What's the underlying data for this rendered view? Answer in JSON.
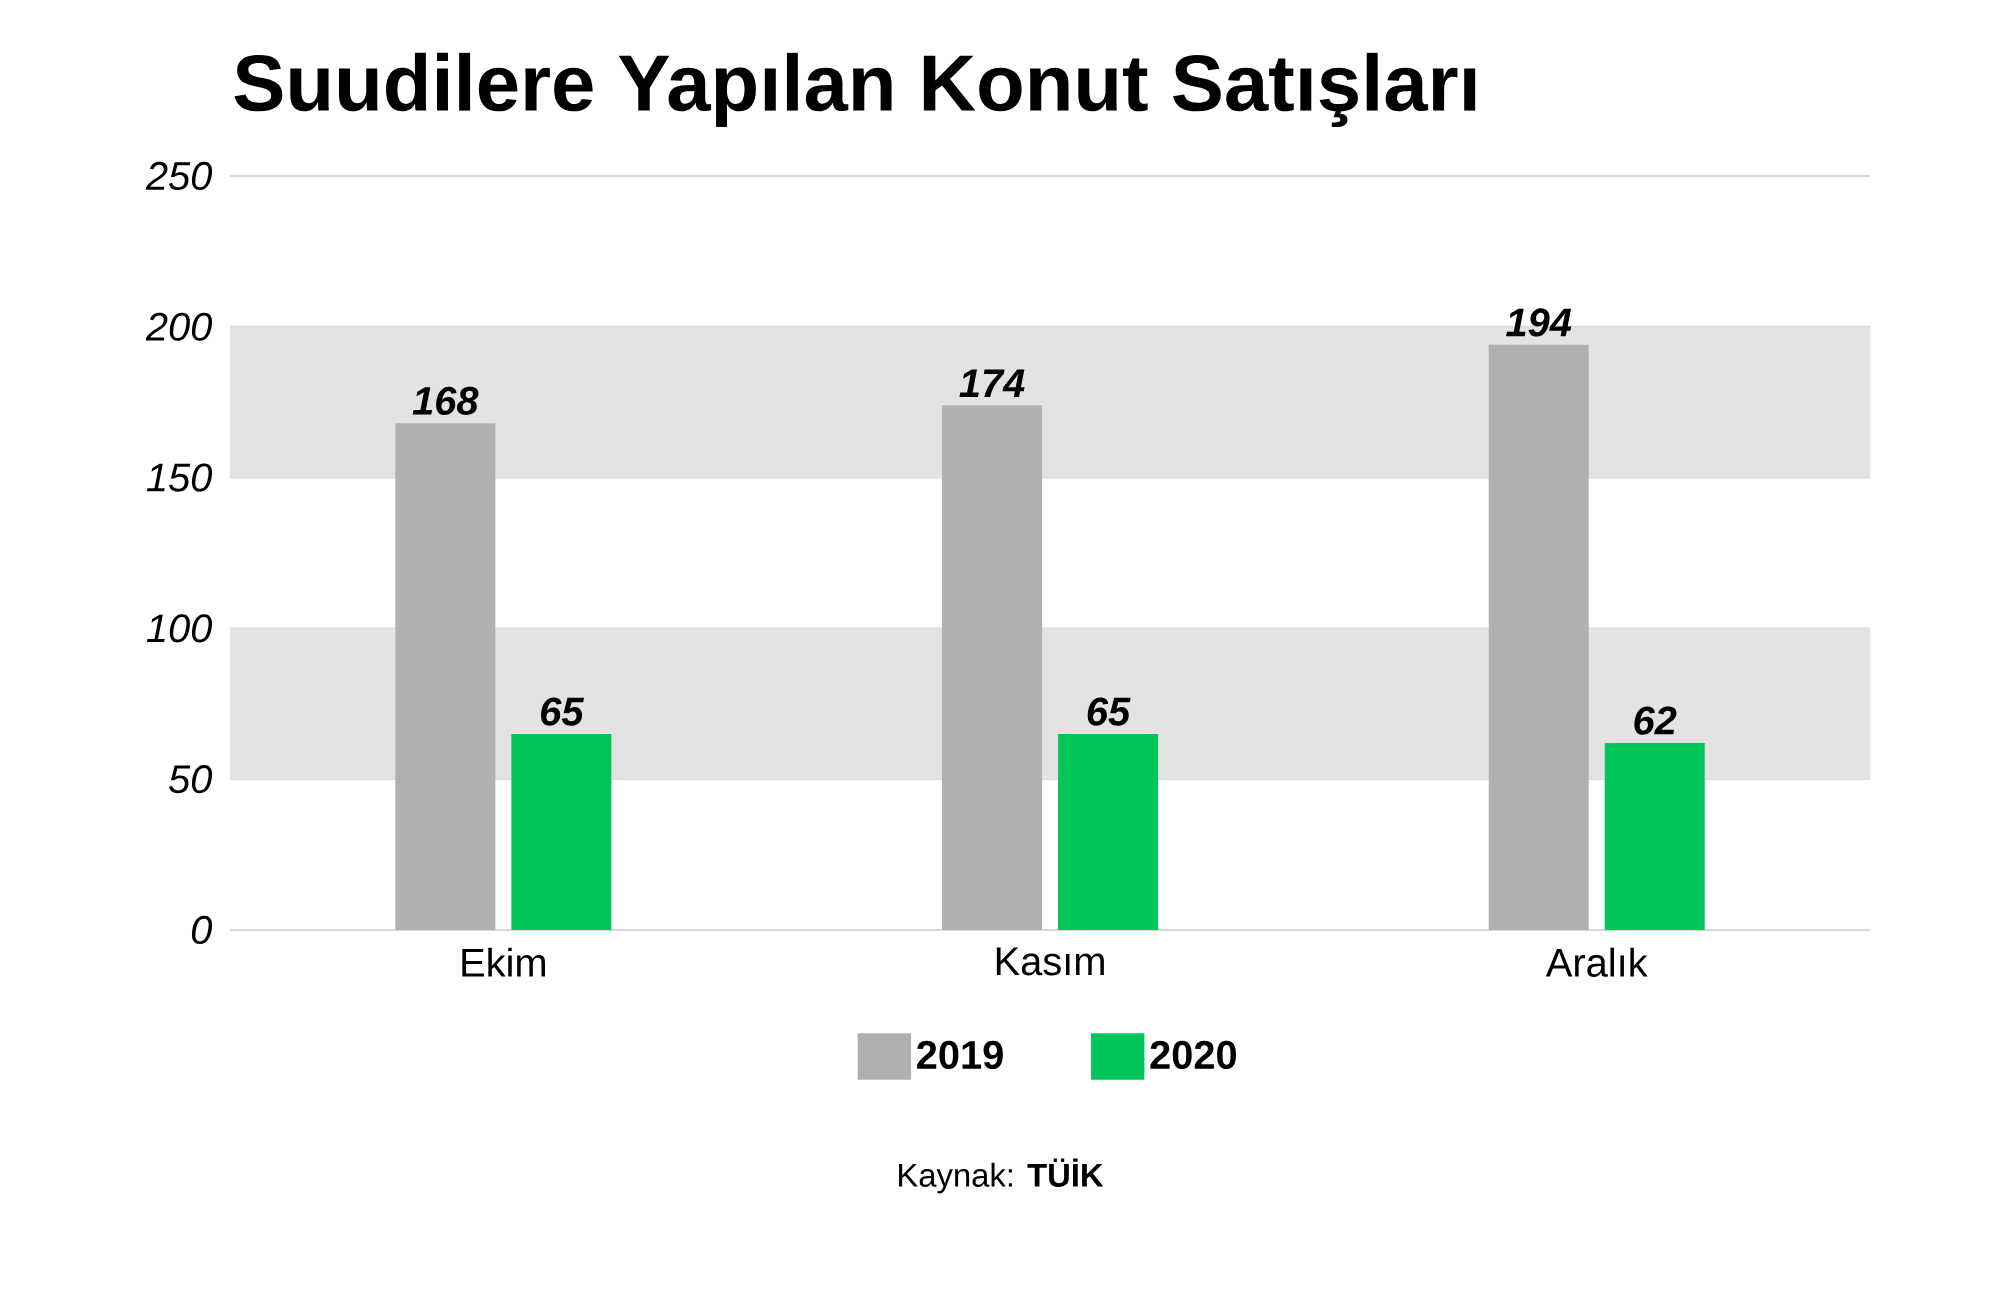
{
  "chart_data": {
    "type": "bar",
    "title": "Suudilere Yapılan Konut Satışları",
    "categories": [
      "Ekim",
      "Kasım",
      "Aralık"
    ],
    "series": [
      {
        "name": "2019",
        "color": "#b0b0b0",
        "values": [
          168,
          174,
          194
        ]
      },
      {
        "name": "2020",
        "color": "#00c65a",
        "values": [
          65,
          65,
          62
        ]
      }
    ],
    "ylim": [
      0,
      250
    ],
    "yticks": [
      0,
      50,
      100,
      150,
      200,
      250
    ],
    "bands": [
      {
        "axis": "y",
        "from": 50,
        "to": 100,
        "color": "#e3e3e3"
      },
      {
        "axis": "y",
        "from": 150,
        "to": 200,
        "color": "#e3e3e3"
      }
    ],
    "grid": "y",
    "legend": "bottom",
    "data_labels": true,
    "annotations": [
      "Kaynak: **TÜİK**"
    ]
  }
}
